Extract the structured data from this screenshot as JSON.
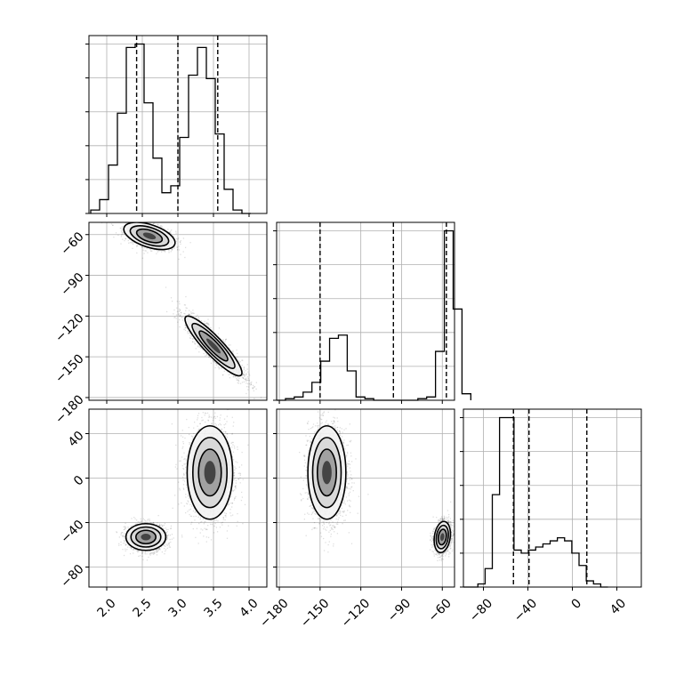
{
  "chart_data": {
    "type": "corner",
    "grid": true,
    "line_color": "#000000",
    "scatter_color": "#000000",
    "parameters": [
      {
        "index": 0,
        "range": [
          1.75,
          4.25
        ],
        "ticks": [
          2.0,
          2.5,
          3.0,
          3.5,
          4.0
        ],
        "tick_labels": [
          "2.0",
          "2.5",
          "3.0",
          "3.5",
          "4.0"
        ],
        "quantiles": [
          2.42,
          3.0,
          3.56
        ]
      },
      {
        "index": 1,
        "range": [
          -182,
          -51
        ],
        "ticks": [
          -180,
          -150,
          -120,
          -90,
          -60
        ],
        "tick_labels": [
          "−180",
          "−150",
          "−120",
          "−90",
          "−60"
        ],
        "quantiles": [
          -150,
          -96,
          -57
        ]
      },
      {
        "index": 2,
        "range": [
          -98,
          62
        ],
        "ticks": [
          -80,
          -40,
          0,
          40
        ],
        "tick_labels": [
          "−80",
          "−40",
          "0",
          "40"
        ],
        "quantiles": [
          -53,
          -39,
          13
        ]
      }
    ],
    "histograms": [
      {
        "param": 0,
        "bin_start": 1.775,
        "bin_width": 0.125,
        "counts": [
          1,
          4,
          14,
          29,
          48,
          49,
          32,
          16,
          6,
          8,
          22,
          40,
          48,
          39,
          23,
          7,
          1,
          0
        ]
      },
      {
        "param": 1,
        "bin_start": -182,
        "bin_width": 6.5,
        "counts": [
          0,
          1,
          2,
          5,
          11,
          24,
          38,
          40,
          18,
          2,
          1,
          0,
          0,
          0,
          0,
          0,
          1,
          2,
          30,
          104,
          56,
          4
        ]
      },
      {
        "param": 2,
        "bin_start": -98,
        "bin_width": 6.5,
        "counts": [
          0,
          0,
          1,
          6,
          30,
          55,
          55,
          12,
          11,
          12,
          13,
          14,
          15,
          16,
          15,
          11,
          7,
          2,
          1,
          0
        ]
      }
    ],
    "pairs": [
      {
        "x_param": 0,
        "y_param": 1,
        "clusters": [
          {
            "cx": 2.6,
            "cy": -61,
            "sx": 0.18,
            "sy": 5,
            "corr": -0.5,
            "n": 1100
          },
          {
            "cx": 3.5,
            "cy": -142,
            "sx": 0.2,
            "sy": 11,
            "corr": -0.9,
            "n": 2200
          }
        ]
      },
      {
        "x_param": 0,
        "y_param": 2,
        "clusters": [
          {
            "cx": 2.55,
            "cy": -53,
            "sx": 0.14,
            "sy": 6,
            "corr": 0,
            "n": 1600
          },
          {
            "cx": 3.45,
            "cy": 5,
            "sx": 0.16,
            "sy": 21,
            "corr": 0,
            "n": 2400
          }
        ]
      },
      {
        "x_param": 1,
        "y_param": 2,
        "clusters": [
          {
            "cx": -145,
            "cy": 5,
            "sx": 7,
            "sy": 21,
            "corr": 0,
            "n": 2400
          },
          {
            "cx": -60,
            "cy": -53,
            "sx": 3,
            "sy": 7,
            "corr": 0.2,
            "n": 1600
          }
        ]
      }
    ]
  }
}
